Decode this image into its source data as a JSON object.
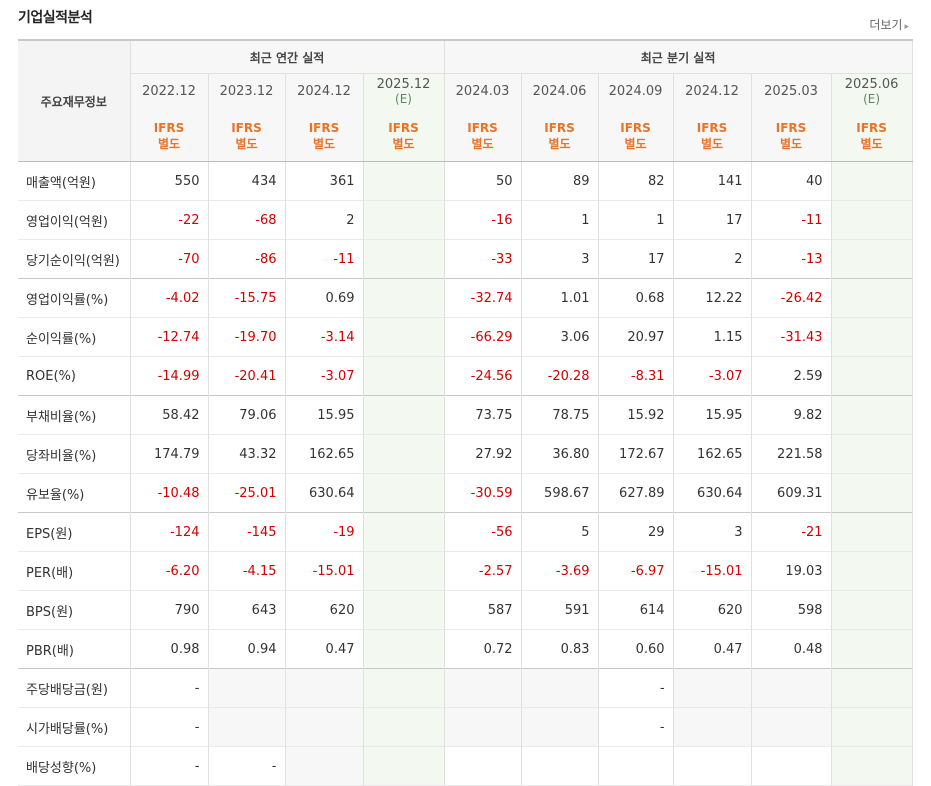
{
  "section": {
    "title": "기업실적분석",
    "more_label": "더보기",
    "more_icon": "triangle-right-icon"
  },
  "header": {
    "label": "주요재무정보",
    "groups": [
      "최근 연간 실적",
      "최근 분기 실적"
    ],
    "periods": [
      {
        "date": "2022.12",
        "est": ""
      },
      {
        "date": "2023.12",
        "est": ""
      },
      {
        "date": "2024.12",
        "est": ""
      },
      {
        "date": "2025.12",
        "est": "(E)"
      },
      {
        "date": "2024.03",
        "est": ""
      },
      {
        "date": "2024.06",
        "est": ""
      },
      {
        "date": "2024.09",
        "est": ""
      },
      {
        "date": "2024.12",
        "est": ""
      },
      {
        "date": "2025.03",
        "est": ""
      },
      {
        "date": "2025.06",
        "est": "(E)"
      }
    ],
    "basis_line1": "IFRS",
    "basis_line2": "별도"
  },
  "rows": [
    {
      "label": "매출액(억원)",
      "values": [
        "550",
        "434",
        "361",
        "",
        "50",
        "89",
        "82",
        "141",
        "40",
        ""
      ]
    },
    {
      "label": "영업이익(억원)",
      "values": [
        "-22",
        "-68",
        "2",
        "",
        "-16",
        "1",
        "1",
        "17",
        "-11",
        ""
      ]
    },
    {
      "label": "당기순이익(억원)",
      "values": [
        "-70",
        "-86",
        "-11",
        "",
        "-33",
        "3",
        "17",
        "2",
        "-13",
        ""
      ]
    },
    {
      "label": "영업이익률(%)",
      "values": [
        "-4.02",
        "-15.75",
        "0.69",
        "",
        "-32.74",
        "1.01",
        "0.68",
        "12.22",
        "-26.42",
        ""
      ]
    },
    {
      "label": "순이익률(%)",
      "values": [
        "-12.74",
        "-19.70",
        "-3.14",
        "",
        "-66.29",
        "3.06",
        "20.97",
        "1.15",
        "-31.43",
        ""
      ]
    },
    {
      "label": "ROE(%)",
      "values": [
        "-14.99",
        "-20.41",
        "-3.07",
        "",
        "-24.56",
        "-20.28",
        "-8.31",
        "-3.07",
        "2.59",
        ""
      ]
    },
    {
      "label": "부채비율(%)",
      "values": [
        "58.42",
        "79.06",
        "15.95",
        "",
        "73.75",
        "78.75",
        "15.92",
        "15.95",
        "9.82",
        ""
      ]
    },
    {
      "label": "당좌비율(%)",
      "values": [
        "174.79",
        "43.32",
        "162.65",
        "",
        "27.92",
        "36.80",
        "172.67",
        "162.65",
        "221.58",
        ""
      ]
    },
    {
      "label": "유보율(%)",
      "values": [
        "-10.48",
        "-25.01",
        "630.64",
        "",
        "-30.59",
        "598.67",
        "627.89",
        "630.64",
        "609.31",
        ""
      ]
    },
    {
      "label": "EPS(원)",
      "values": [
        "-124",
        "-145",
        "-19",
        "",
        "-56",
        "5",
        "29",
        "3",
        "-21",
        ""
      ]
    },
    {
      "label": "PER(배)",
      "values": [
        "-6.20",
        "-4.15",
        "-15.01",
        "",
        "-2.57",
        "-3.69",
        "-6.97",
        "-15.01",
        "19.03",
        ""
      ]
    },
    {
      "label": "BPS(원)",
      "values": [
        "790",
        "643",
        "620",
        "",
        "587",
        "591",
        "614",
        "620",
        "598",
        ""
      ]
    },
    {
      "label": "PBR(배)",
      "values": [
        "0.98",
        "0.94",
        "0.47",
        "",
        "0.72",
        "0.83",
        "0.60",
        "0.47",
        "0.48",
        ""
      ]
    },
    {
      "label": "주당배당금(원)",
      "values": [
        "-",
        "",
        "",
        "",
        "",
        "",
        "-",
        "",
        "",
        ""
      ]
    },
    {
      "label": "시가배당률(%)",
      "values": [
        "-",
        "",
        "",
        "",
        "",
        "",
        "-",
        "",
        "",
        ""
      ]
    },
    {
      "label": "배당성향(%)",
      "values": [
        "-",
        "-",
        "",
        "",
        "",
        "",
        "",
        "",
        "",
        ""
      ]
    }
  ],
  "colors": {
    "negative": "#d10000",
    "ifrs": "#e8742a",
    "estimate_bg": "#f3f8f1"
  }
}
